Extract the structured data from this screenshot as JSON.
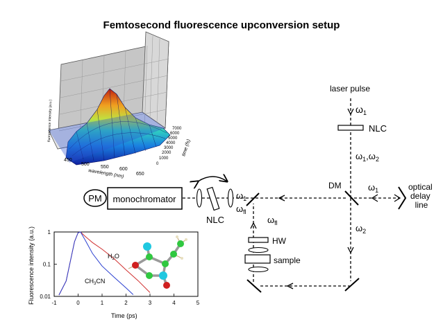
{
  "title": "Femtosecond fluorescence upconversion setup",
  "surface": {
    "zlabel": "fluorescence intensity (a.u.)",
    "xlabel": "wavelength (nm)",
    "xticks": [
      "450",
      "500",
      "550",
      "600",
      "650"
    ],
    "ylabel": "time (fs)",
    "yticks": [
      "0",
      "1000",
      "2000",
      "3000",
      "4000",
      "5000",
      "6000",
      "7000"
    ]
  },
  "setup": {
    "laser_pulse": "laser pulse",
    "omega1": "ω",
    "omega1_sub": "1",
    "nlc_top": "NLC",
    "omega12": "ω1,ω2",
    "dm": "DM",
    "omega1_right": "ω",
    "omega1_right_sub": "1",
    "optical_delay": [
      "optical",
      "delay",
      "line"
    ],
    "omega2": "ω",
    "omega2_sub": "2",
    "pm": "PM",
    "monochromator": "monochromator",
    "nlc_mid": "NLC",
    "omega1_mid": "ω",
    "omega1_mid_sub": "1",
    "omega_fl_mid": "ω",
    "omega_fl_mid_sub": "fl",
    "omega_fl_low": "ω",
    "omega_fl_low_sub": "fl",
    "hw": "HW",
    "sample": "sample"
  },
  "decay_plot": {
    "ylabel": "Fluorescence intensity (a.u.)",
    "xlabel": "Time (ps)",
    "xticks": [
      "-1",
      "0",
      "1",
      "2",
      "3",
      "4",
      "5"
    ],
    "yticks": [
      "1",
      "0.1",
      "0.01"
    ],
    "label_h2o": "H2O",
    "label_ch3cn": "CH3CN"
  },
  "chart_data": {
    "type": "line",
    "title": "",
    "xlabel": "Time (ps)",
    "ylabel": "Fluorescence intensity (a.u.)",
    "xlim": [
      -1,
      5
    ],
    "ylim": [
      0.01,
      1
    ],
    "yscale": "log",
    "series": [
      {
        "name": "H2O",
        "color": "#d03030",
        "x": [
          -0.8,
          -0.5,
          -0.3,
          -0.15,
          0.0,
          0.1,
          0.3,
          0.6,
          1.0,
          1.5,
          2.0,
          2.5,
          3.0
        ],
        "y": [
          0.011,
          0.03,
          0.15,
          0.5,
          0.95,
          1.0,
          0.72,
          0.48,
          0.3,
          0.15,
          0.065,
          0.03,
          0.013
        ]
      },
      {
        "name": "CH3CN",
        "color": "#2a3fd0",
        "x": [
          -0.8,
          -0.5,
          -0.3,
          -0.15,
          0.0,
          0.1,
          0.3,
          0.6,
          1.0,
          1.5,
          2.0,
          2.3
        ],
        "y": [
          0.011,
          0.03,
          0.15,
          0.5,
          0.95,
          1.0,
          0.55,
          0.22,
          0.09,
          0.04,
          0.018,
          0.011
        ]
      }
    ]
  }
}
